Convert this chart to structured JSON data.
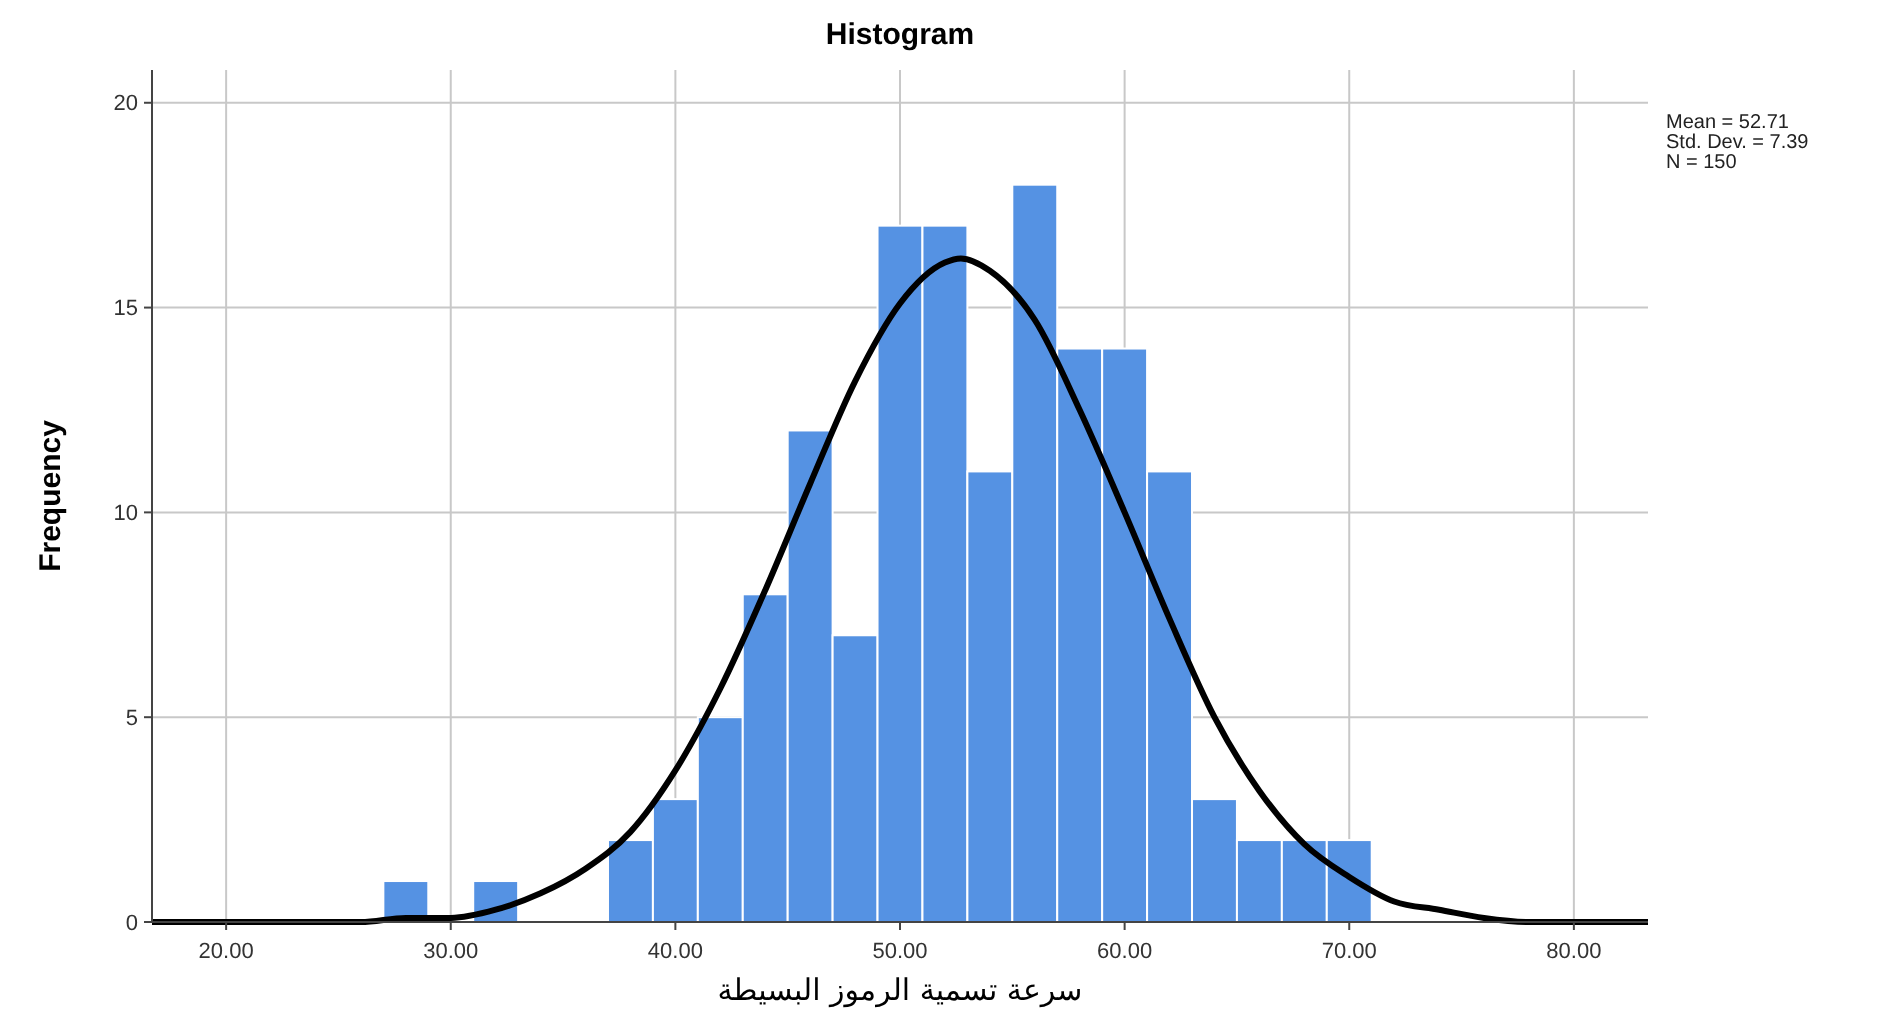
{
  "chart_data": {
    "type": "histogram",
    "title": "Histogram",
    "xlabel": "سرعة تسمية الرموز البسيطة",
    "ylabel": "Frequency",
    "bins": [
      27,
      29,
      31,
      33,
      35,
      37,
      39,
      41,
      43,
      45,
      47,
      49,
      51,
      53,
      55,
      57,
      59,
      61,
      63,
      65,
      67,
      69,
      71
    ],
    "values": [
      1,
      0,
      1,
      0,
      0,
      2,
      3,
      5,
      8,
      12,
      7,
      17,
      17,
      11,
      18,
      14,
      14,
      11,
      3,
      2,
      2,
      2
    ],
    "color": "#5592e3",
    "series": [
      {
        "type": "line",
        "color": "#000000",
        "marker": "none",
        "line_style": "solid",
        "x": [
          16.7,
          20,
          24,
          26,
          28,
          30,
          32,
          34,
          36,
          38,
          40,
          42,
          44,
          46,
          48,
          50,
          52,
          52.71,
          54,
          56,
          58,
          60,
          62,
          64,
          66,
          68,
          70,
          72,
          74,
          76,
          78,
          80,
          83.3
        ],
        "values": [
          0,
          0,
          0,
          0,
          0.1,
          0.1,
          0.3,
          0.7,
          1.3,
          2.2,
          3.7,
          5.7,
          8.1,
          10.7,
          13.2,
          15.1,
          16.1,
          16.2,
          15.9,
          14.7,
          12.5,
          10,
          7.4,
          5,
          3.2,
          1.9,
          1.1,
          0.5,
          0.3,
          0.1,
          0,
          0,
          0
        ]
      }
    ],
    "xlim": [
      16.7,
      83.3
    ],
    "xticks": [
      {
        "value": 20,
        "label": "20.00"
      },
      {
        "value": 30,
        "label": "30.00"
      },
      {
        "value": 40,
        "label": "40.00"
      },
      {
        "value": 50,
        "label": "50.00"
      },
      {
        "value": 60,
        "label": "60.00"
      },
      {
        "value": 70,
        "label": "70.00"
      },
      {
        "value": 80,
        "label": "80.00"
      }
    ],
    "ylim": [
      0,
      20.8
    ],
    "yticks": [
      0,
      5,
      10,
      15,
      20
    ],
    "grid": true,
    "annotations": [
      "Mean = 52.71",
      "Std. Dev. = 7.39",
      "N = 150"
    ]
  }
}
